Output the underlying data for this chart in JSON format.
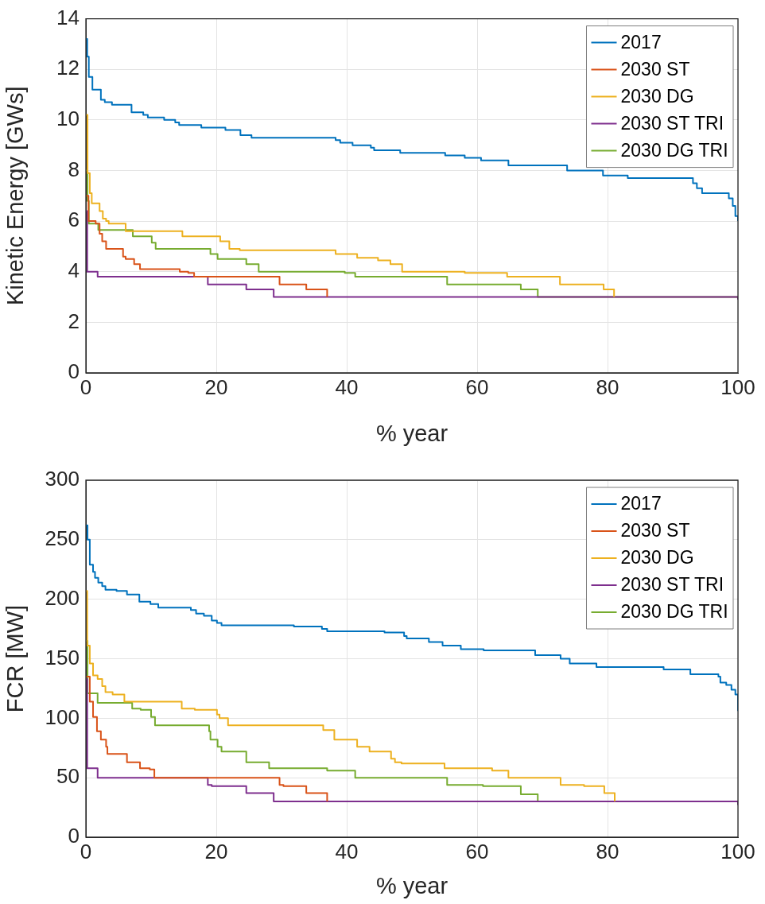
{
  "chart_data": [
    {
      "type": "step",
      "xlabel": "% year",
      "ylabel": "Kinetic Energy [GWs]",
      "xlim": [
        0,
        100
      ],
      "xticks": [
        0,
        20,
        40,
        60,
        80,
        100
      ],
      "ylim": [
        0,
        14
      ],
      "yticks": [
        0,
        2,
        4,
        6,
        8,
        10,
        12,
        14
      ],
      "grid": true,
      "legend": "top right",
      "series": [
        {
          "name": "2017",
          "color": "#0072bd",
          "x": [
            0,
            0.2,
            0.45,
            1,
            2.3,
            2.9,
            4,
            7,
            8.8,
            9.5,
            12,
            13.7,
            14.3,
            17.7,
            21.4,
            23.7,
            25.4,
            38.3,
            39,
            40.9,
            43.7,
            44.2,
            48.2,
            55.1,
            58.1,
            60.6,
            64.8,
            73.8,
            79.3,
            83.1,
            93.1,
            93.7,
            94.5,
            98.6,
            99.2,
            99.6,
            100
          ],
          "values": [
            13.2,
            12.5,
            11.7,
            11.2,
            10.8,
            10.7,
            10.6,
            10.3,
            10.2,
            10.1,
            10,
            9.9,
            9.8,
            9.7,
            9.6,
            9.4,
            9.3,
            9.2,
            9.1,
            9,
            8.9,
            8.8,
            8.7,
            8.6,
            8.5,
            8.4,
            8.2,
            8,
            7.8,
            7.7,
            7.5,
            7.3,
            7.1,
            6.9,
            6.6,
            6.2,
            6
          ]
        },
        {
          "name": "2030 ST",
          "color": "#d95319",
          "x": [
            0,
            0.4,
            1.5,
            2.1,
            2.5,
            3.1,
            5.7,
            6.1,
            7.4,
            8.3,
            14.4,
            15.7,
            16.6,
            29.7,
            33.8,
            37
          ],
          "values": [
            7,
            6,
            5.9,
            5.5,
            5.2,
            4.9,
            4.6,
            4.5,
            4.3,
            4.1,
            4,
            3.95,
            3.8,
            3.5,
            3.3,
            3
          ]
        },
        {
          "name": "2030 DG",
          "color": "#edb120",
          "x": [
            0,
            0.25,
            0.6,
            0.9,
            1.7,
            2.1,
            2.6,
            3.1,
            3.5,
            6.1,
            14.8,
            20.6,
            22,
            23.6,
            38.3,
            41.6,
            44.8,
            46.7,
            48.5,
            58.1,
            64.6,
            72.7,
            79.4,
            81
          ],
          "values": [
            10.2,
            7.9,
            7.1,
            6.7,
            6.7,
            6.4,
            6.1,
            6,
            5.9,
            5.6,
            5.4,
            5.2,
            4.9,
            4.85,
            4.7,
            4.55,
            4.45,
            4.3,
            4,
            3.95,
            3.8,
            3.5,
            3.3,
            3
          ]
        },
        {
          "name": "2030 ST TRI",
          "color": "#7e2f8e",
          "x": [
            0,
            0.2,
            1.8,
            18.7,
            24.6,
            28.8,
            100
          ],
          "values": [
            6.4,
            4,
            3.8,
            3.5,
            3.3,
            3,
            2.9
          ]
        },
        {
          "name": "2030 DG TRI",
          "color": "#77ac30",
          "x": [
            0,
            0.25,
            0.45,
            1.9,
            7.2,
            10.1,
            10.7,
            19.1,
            20.2,
            24.6,
            26.5,
            39.7,
            41.3,
            55.4,
            66.7,
            69.3,
            100
          ],
          "values": [
            8,
            6.8,
            5.9,
            5.65,
            5.4,
            5.15,
            4.9,
            4.7,
            4.5,
            4.3,
            4,
            3.95,
            3.8,
            3.5,
            3.3,
            3,
            3
          ]
        }
      ]
    },
    {
      "type": "step",
      "xlabel": "% year",
      "ylabel": "FCR [MW]",
      "xlim": [
        0,
        100
      ],
      "xticks": [
        0,
        20,
        40,
        60,
        80,
        100
      ],
      "ylim": [
        0,
        300
      ],
      "yticks": [
        0,
        50,
        100,
        150,
        200,
        250,
        300
      ],
      "grid": true,
      "legend": "top right",
      "series": [
        {
          "name": "2017",
          "color": "#0072bd",
          "x": [
            0,
            0.25,
            0.6,
            1.1,
            1.4,
            1.9,
            2.5,
            3,
            4.7,
            6.3,
            8.2,
            9.9,
            11.1,
            16.1,
            16.9,
            18.1,
            19.3,
            20.1,
            20.8,
            31.9,
            36.2,
            37,
            45.8,
            48.8,
            49.2,
            52.6,
            54.7,
            57.5,
            61,
            68.9,
            72.8,
            74.2,
            78.3,
            88.6,
            92.7,
            97,
            97.3,
            98.2,
            99,
            99.6,
            100
          ],
          "values": [
            262,
            250,
            229,
            223,
            218,
            214,
            211,
            208,
            207,
            204,
            198,
            196,
            193,
            191,
            188,
            186,
            182,
            180,
            178,
            177,
            175,
            173,
            172,
            169,
            167,
            164,
            161,
            158,
            157,
            153,
            150,
            146,
            143,
            141,
            137,
            135,
            130,
            128,
            124,
            120,
            106
          ]
        },
        {
          "name": "2030 ST",
          "color": "#d95319",
          "x": [
            0,
            0.6,
            1.1,
            1.7,
            2.3,
            3.1,
            3.3,
            6.3,
            8.3,
            9.8,
            10.5,
            29.7,
            30.3,
            33.8,
            37
          ],
          "values": [
            135,
            114,
            101,
            89,
            82,
            76,
            70,
            63,
            58,
            57,
            50,
            44,
            43,
            37,
            30
          ]
        },
        {
          "name": "2030 DG",
          "color": "#edb120",
          "x": [
            0,
            0.2,
            0.6,
            1.1,
            1.8,
            2.5,
            3,
            4.1,
            5.9,
            14.7,
            16.7,
            20.1,
            20.5,
            21.8,
            36.4,
            38.1,
            41.6,
            43.5,
            46.8,
            47.4,
            48.4,
            55,
            62.3,
            64.8,
            72.8,
            76.4,
            79.5,
            81.1
          ],
          "values": [
            207,
            161,
            146,
            136,
            133,
            127,
            122,
            120,
            114,
            108,
            107,
            103,
            100,
            94,
            90,
            82,
            76,
            72,
            66,
            63,
            62,
            58,
            56,
            50,
            44,
            43,
            37,
            30
          ]
        },
        {
          "name": "2030 ST TRI",
          "color": "#7e2f8e",
          "x": [
            0,
            0.2,
            1.8,
            18.7,
            19.3,
            24.6,
            28.8,
            100
          ],
          "values": [
            133,
            58,
            50,
            44,
            43,
            37,
            30,
            27
          ]
        },
        {
          "name": "2030 DG TRI",
          "color": "#77ac30",
          "x": [
            0,
            0.25,
            1.8,
            7.1,
            8.4,
            10,
            10.6,
            18.9,
            19.1,
            20.2,
            20.8,
            24.6,
            28.1,
            37,
            41.3,
            55.4,
            60.9,
            66.7,
            69.3,
            100
          ],
          "values": [
            165,
            121,
            113,
            108,
            107,
            101,
            94,
            89,
            82,
            76,
            72,
            63,
            58,
            56,
            50,
            44,
            43,
            36,
            30,
            30
          ]
        }
      ]
    }
  ]
}
